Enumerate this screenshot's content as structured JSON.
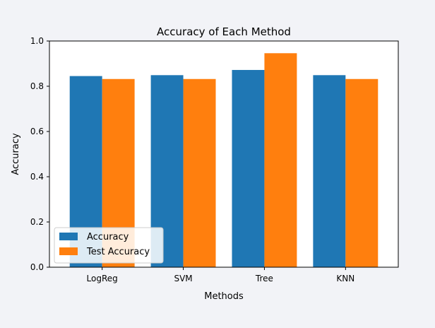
{
  "chart_data": {
    "type": "bar",
    "title": "Accuracy of Each Method",
    "xlabel": "Methods",
    "ylabel": "Accuracy",
    "categories": [
      "LogReg",
      "SVM",
      "Tree",
      "KNN"
    ],
    "series": [
      {
        "name": "Accuracy",
        "values": [
          0.845,
          0.849,
          0.872,
          0.849
        ],
        "color": "#1f77b4"
      },
      {
        "name": "Test Accuracy",
        "values": [
          0.832,
          0.832,
          0.946,
          0.832
        ],
        "color": "#ff7f0e"
      }
    ],
    "ylim": [
      0,
      1.0
    ],
    "yticks": [
      0.0,
      0.2,
      0.4,
      0.6,
      0.8,
      1.0
    ],
    "ytick_labels": [
      "0.0",
      "0.2",
      "0.4",
      "0.6",
      "0.8",
      "1.0"
    ],
    "grid": false,
    "legend_position": "lower-left"
  },
  "page": {
    "background": "#f2f3f7",
    "plot_background": "#ffffff"
  }
}
